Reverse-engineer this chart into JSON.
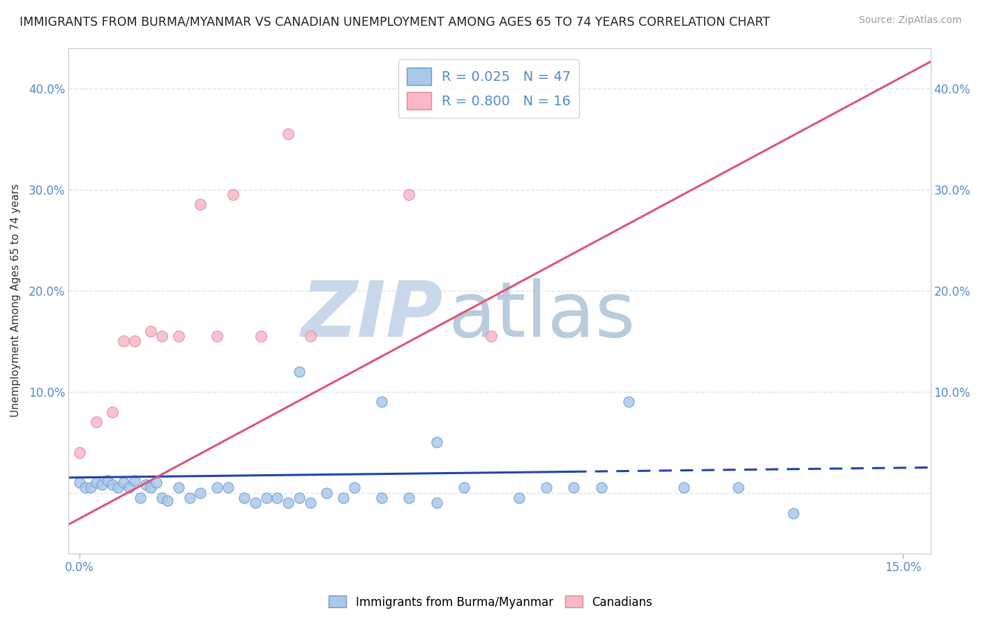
{
  "title": "IMMIGRANTS FROM BURMA/MYANMAR VS CANADIAN UNEMPLOYMENT AMONG AGES 65 TO 74 YEARS CORRELATION CHART",
  "source": "Source: ZipAtlas.com",
  "ylabel": "Unemployment Among Ages 65 to 74 years",
  "xlim": [
    -0.002,
    0.155
  ],
  "ylim": [
    -0.06,
    0.44
  ],
  "yticks": [
    0.0,
    0.1,
    0.2,
    0.3,
    0.4
  ],
  "blue_R": 0.025,
  "blue_N": 47,
  "pink_R": 0.8,
  "pink_N": 16,
  "blue_color": "#aac8ea",
  "blue_edge_color": "#6699cc",
  "blue_line_color": "#2244aa",
  "pink_color": "#f8b8c8",
  "pink_edge_color": "#dd8899",
  "pink_line_color": "#dd5577",
  "watermark_zip": "ZIP",
  "watermark_atlas": "atlas",
  "watermark_color_zip": "#c8d8ea",
  "watermark_color_atlas": "#b8ccdd",
  "background_color": "#ffffff",
  "grid_color": "#d8e4f0",
  "tick_label_color": "#5588cc",
  "blue_scatter_x": [
    0.0,
    0.001,
    0.002,
    0.003,
    0.004,
    0.005,
    0.006,
    0.007,
    0.008,
    0.009,
    0.01,
    0.011,
    0.012,
    0.013,
    0.014,
    0.015,
    0.016,
    0.018,
    0.02,
    0.022,
    0.025,
    0.027,
    0.03,
    0.032,
    0.034,
    0.036,
    0.038,
    0.04,
    0.042,
    0.045,
    0.048,
    0.05,
    0.055,
    0.06,
    0.065,
    0.07,
    0.08,
    0.085,
    0.09,
    0.095,
    0.1,
    0.11,
    0.12,
    0.13,
    0.04,
    0.055,
    0.065
  ],
  "blue_scatter_y": [
    0.01,
    0.005,
    0.005,
    0.01,
    0.008,
    0.012,
    0.008,
    0.005,
    0.01,
    0.005,
    0.012,
    -0.005,
    0.008,
    0.005,
    0.01,
    -0.005,
    -0.008,
    0.005,
    -0.005,
    0.0,
    0.005,
    0.005,
    -0.005,
    -0.01,
    -0.005,
    -0.005,
    -0.01,
    -0.005,
    -0.01,
    0.0,
    -0.005,
    0.005,
    -0.005,
    -0.005,
    -0.01,
    0.005,
    -0.005,
    0.005,
    0.005,
    0.005,
    0.09,
    0.005,
    0.005,
    -0.02,
    0.12,
    0.09,
    0.05
  ],
  "pink_scatter_x": [
    0.0,
    0.003,
    0.006,
    0.008,
    0.01,
    0.013,
    0.015,
    0.018,
    0.022,
    0.025,
    0.028,
    0.033,
    0.038,
    0.042,
    0.06,
    0.075
  ],
  "pink_scatter_y": [
    0.04,
    0.07,
    0.08,
    0.15,
    0.15,
    0.16,
    0.155,
    0.155,
    0.285,
    0.155,
    0.295,
    0.155,
    0.355,
    0.155,
    0.295,
    0.155
  ],
  "blue_line_x0": -0.002,
  "blue_line_x1": 0.155,
  "blue_line_y0": 0.015,
  "blue_line_y1": 0.025,
  "blue_line_dash_x0": 0.09,
  "blue_line_dash_x1": 0.155,
  "pink_line_x0": -0.005,
  "pink_line_x1": 0.158,
  "pink_line_y0": -0.04,
  "pink_line_y1": 0.435
}
